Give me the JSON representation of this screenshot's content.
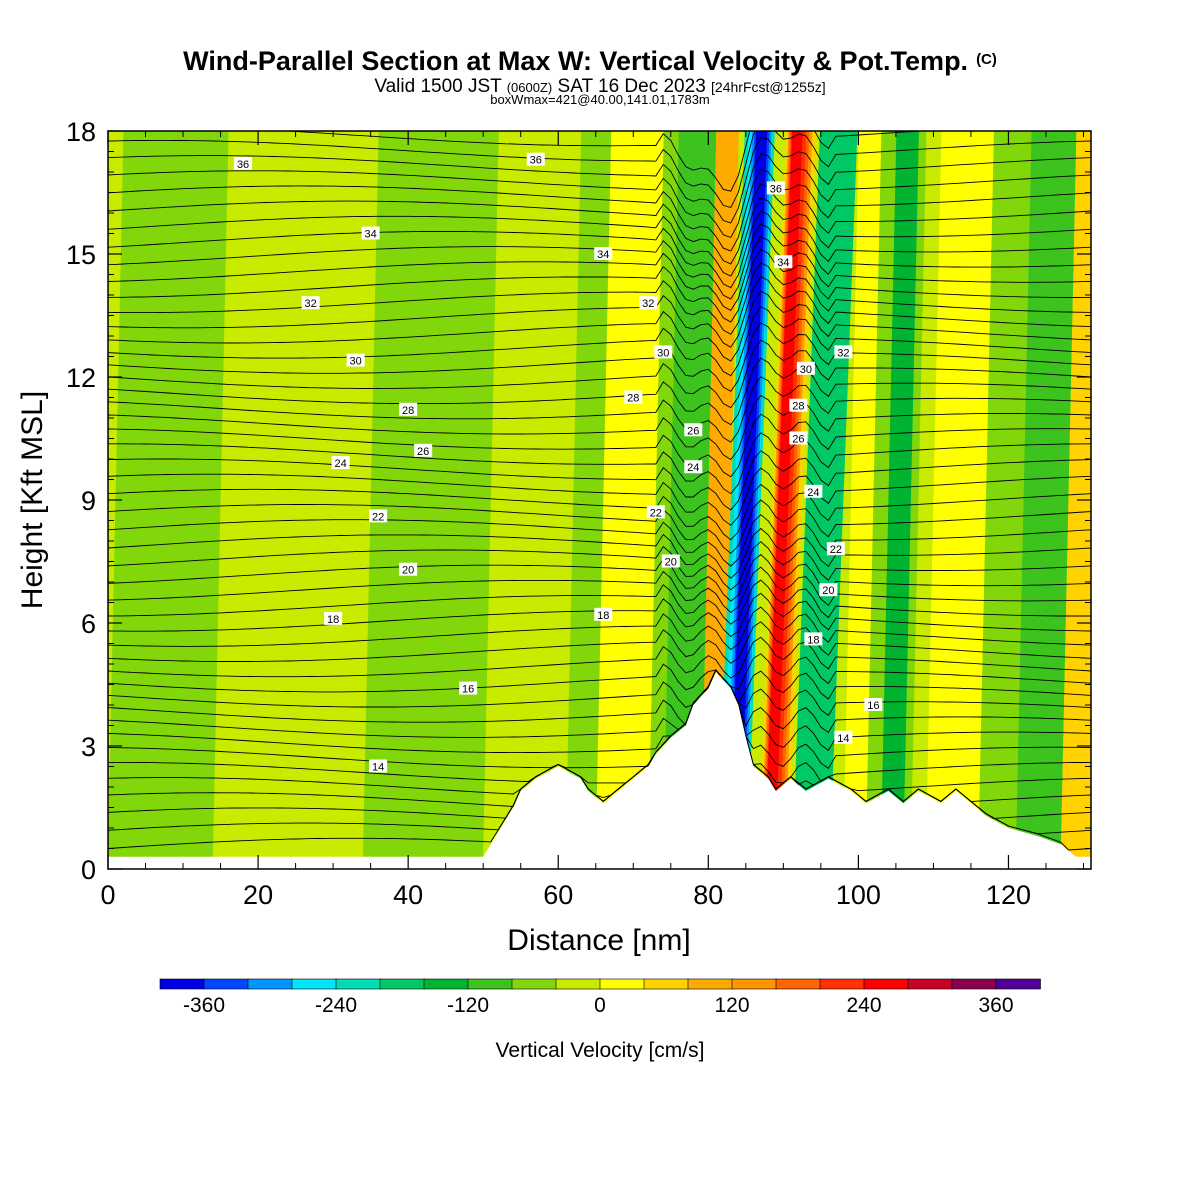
{
  "header": {
    "title": "Wind-Parallel Section at Max W: Vertical Velocity & Pot.Temp.",
    "title_mark": "(C)",
    "valid_prefix": "Valid 1500 JST",
    "valid_utc": "(0600Z)",
    "valid_date": "SAT 16 Dec 2023",
    "valid_fcst": "[24hrFcst@1255z]",
    "box_info": "boxWmax=421@40.00,141.01,1783m"
  },
  "chart_data": {
    "type": "heatmap",
    "xlabel": "Distance [nm]",
    "ylabel": "Height [Kft MSL]",
    "xlim": [
      0,
      131
    ],
    "ylim": [
      0,
      18
    ],
    "x_ticks": [
      0,
      20,
      40,
      60,
      80,
      100,
      120
    ],
    "y_ticks": [
      0,
      3,
      6,
      9,
      12,
      15,
      18
    ],
    "grid": false,
    "colorbar": {
      "label": "Vertical Velocity [cm/s]",
      "levels": [
        -360,
        -240,
        -120,
        0,
        120,
        240,
        360
      ],
      "tick_labels": [
        "-360",
        "-240",
        "-120",
        "0",
        "120",
        "240",
        "360"
      ],
      "colors": [
        "#0000e6",
        "#0046ff",
        "#0096ff",
        "#00e6ff",
        "#00dcb4",
        "#00c864",
        "#00b432",
        "#3cc31e",
        "#82d70a",
        "#c8eb00",
        "#ffff00",
        "#ffd200",
        "#ffaa00",
        "#ff9600",
        "#ff6400",
        "#ff3200",
        "#ff0000",
        "#c80028",
        "#8c0050",
        "#500096"
      ],
      "placement": "bottom"
    },
    "w_background": "#c8eb00",
    "w_bands": [
      {
        "x": 1,
        "w": 14,
        "color": "#82d70a"
      },
      {
        "x": 35,
        "w": 16,
        "color": "#82d70a"
      },
      {
        "x": 43,
        "w": 8,
        "color": "#82d70a"
      },
      {
        "x": 62,
        "w": 16,
        "color": "#82d70a"
      },
      {
        "x": 66,
        "w": 10,
        "color": "#ffff00"
      },
      {
        "x": 73,
        "w": 10,
        "color": "#82d70a"
      },
      {
        "x": 75,
        "w": 5,
        "color": "#3cc31e"
      },
      {
        "x": 80,
        "w": 3,
        "color": "#ffaa00"
      },
      {
        "x": 83,
        "w": 4,
        "color": "#00dcb4"
      },
      {
        "x": 83.5,
        "w": 3.2,
        "color": "#00e6ff"
      },
      {
        "x": 84,
        "w": 2.6,
        "color": "#0096ff"
      },
      {
        "x": 84.3,
        "w": 2.0,
        "color": "#0046ff"
      },
      {
        "x": 84.5,
        "w": 1.5,
        "color": "#0000e6"
      },
      {
        "x": 88.5,
        "w": 4,
        "color": "#ffd200"
      },
      {
        "x": 88.8,
        "w": 3.2,
        "color": "#ff9600"
      },
      {
        "x": 89,
        "w": 2.6,
        "color": "#ff6400"
      },
      {
        "x": 89.2,
        "w": 2.0,
        "color": "#ff3200"
      },
      {
        "x": 89.3,
        "w": 1.4,
        "color": "#ff0000"
      },
      {
        "x": 93,
        "w": 5,
        "color": "#00c864"
      },
      {
        "x": 99,
        "w": 4,
        "color": "#ffff00"
      },
      {
        "x": 102,
        "w": 6,
        "color": "#82d70a"
      },
      {
        "x": 104,
        "w": 3,
        "color": "#00b432"
      },
      {
        "x": 110,
        "w": 8,
        "color": "#ffff00"
      },
      {
        "x": 117,
        "w": 5,
        "color": "#82d70a"
      },
      {
        "x": 122,
        "w": 6,
        "color": "#3cc31e"
      },
      {
        "x": 128,
        "w": 4,
        "color": "#ffd200"
      }
    ],
    "theta_levels": [
      14,
      16,
      18,
      20,
      22,
      24,
      26,
      28,
      30,
      32,
      34,
      36
    ],
    "theta_labels": [
      {
        "text": "36",
        "x": 18,
        "y": 17.2
      },
      {
        "text": "36",
        "x": 57,
        "y": 17.3
      },
      {
        "text": "34",
        "x": 35,
        "y": 15.5
      },
      {
        "text": "34",
        "x": 66,
        "y": 15.0
      },
      {
        "text": "32",
        "x": 27,
        "y": 13.8
      },
      {
        "text": "32",
        "x": 72,
        "y": 13.8
      },
      {
        "text": "30",
        "x": 33,
        "y": 12.4
      },
      {
        "text": "30",
        "x": 74,
        "y": 12.6
      },
      {
        "text": "28",
        "x": 40,
        "y": 11.2
      },
      {
        "text": "28",
        "x": 70,
        "y": 11.5
      },
      {
        "text": "26",
        "x": 42,
        "y": 10.2
      },
      {
        "text": "26",
        "x": 78,
        "y": 10.7
      },
      {
        "text": "24",
        "x": 31,
        "y": 9.9
      },
      {
        "text": "24",
        "x": 78,
        "y": 9.8
      },
      {
        "text": "22",
        "x": 36,
        "y": 8.6
      },
      {
        "text": "22",
        "x": 73,
        "y": 8.7
      },
      {
        "text": "20",
        "x": 40,
        "y": 7.3
      },
      {
        "text": "20",
        "x": 75,
        "y": 7.5
      },
      {
        "text": "18",
        "x": 30,
        "y": 6.1
      },
      {
        "text": "18",
        "x": 66,
        "y": 6.2
      },
      {
        "text": "16",
        "x": 48,
        "y": 4.4
      },
      {
        "text": "14",
        "x": 36,
        "y": 2.5
      },
      {
        "text": "36",
        "x": 89,
        "y": 16.6
      },
      {
        "text": "34",
        "x": 90,
        "y": 14.8
      },
      {
        "text": "32",
        "x": 98,
        "y": 12.6
      },
      {
        "text": "30",
        "x": 93,
        "y": 12.2
      },
      {
        "text": "28",
        "x": 92,
        "y": 11.3
      },
      {
        "text": "26",
        "x": 92,
        "y": 10.5
      },
      {
        "text": "24",
        "x": 94,
        "y": 9.2
      },
      {
        "text": "22",
        "x": 97,
        "y": 7.8
      },
      {
        "text": "20",
        "x": 96,
        "y": 6.8
      },
      {
        "text": "18",
        "x": 94,
        "y": 5.6
      },
      {
        "text": "16",
        "x": 102,
        "y": 4.0
      },
      {
        "text": "14",
        "x": 98,
        "y": 3.2
      }
    ],
    "terrain": [
      [
        0,
        0.3
      ],
      [
        50,
        0.3
      ],
      [
        51,
        0.6
      ],
      [
        52,
        0.9
      ],
      [
        53,
        1.2
      ],
      [
        54,
        1.5
      ],
      [
        55,
        1.9
      ],
      [
        57,
        2.2
      ],
      [
        60,
        2.5
      ],
      [
        63,
        2.2
      ],
      [
        64,
        1.9
      ],
      [
        66,
        1.6
      ],
      [
        68,
        1.9
      ],
      [
        70,
        2.2
      ],
      [
        72,
        2.5
      ],
      [
        73,
        2.8
      ],
      [
        75,
        3.2
      ],
      [
        77,
        3.5
      ],
      [
        78,
        4.0
      ],
      [
        80,
        4.4
      ],
      [
        81,
        4.8
      ],
      [
        83,
        4.4
      ],
      [
        84,
        4.0
      ],
      [
        85,
        3.2
      ],
      [
        86,
        2.5
      ],
      [
        88,
        2.2
      ],
      [
        89,
        1.9
      ],
      [
        91,
        2.2
      ],
      [
        93,
        1.9
      ],
      [
        96,
        2.2
      ],
      [
        99,
        1.9
      ],
      [
        101,
        1.6
      ],
      [
        104,
        1.9
      ],
      [
        106,
        1.6
      ],
      [
        108,
        1.9
      ],
      [
        111,
        1.6
      ],
      [
        113,
        1.9
      ],
      [
        115,
        1.6
      ],
      [
        117,
        1.3
      ],
      [
        120,
        1.0
      ],
      [
        124,
        0.8
      ],
      [
        127,
        0.6
      ],
      [
        129,
        0.3
      ],
      [
        131,
        0.3
      ]
    ]
  }
}
